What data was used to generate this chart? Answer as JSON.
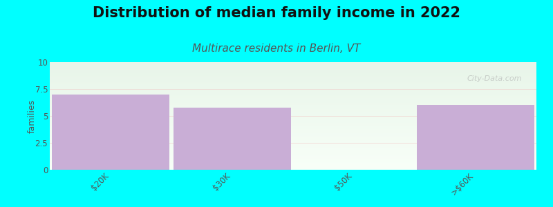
{
  "title": "Distribution of median family income in 2022",
  "subtitle": "Multirace residents in Berlin, VT",
  "categories": [
    "$20K",
    "$30K",
    "$50K",
    ">$60K"
  ],
  "values": [
    7,
    5.8,
    0,
    6
  ],
  "bar_colors": [
    "#c9aed6",
    "#c9aed6",
    "#dde8c0",
    "#c9aed6"
  ],
  "ylabel": "families",
  "ylim": [
    0,
    10
  ],
  "yticks": [
    0,
    2.5,
    5,
    7.5,
    10
  ],
  "background_color": "#00ffff",
  "bg_top_color": "#e8f5e9",
  "bg_bottom_color": "#f8fff8",
  "title_fontsize": 15,
  "subtitle_fontsize": 11,
  "watermark": "City-Data.com"
}
